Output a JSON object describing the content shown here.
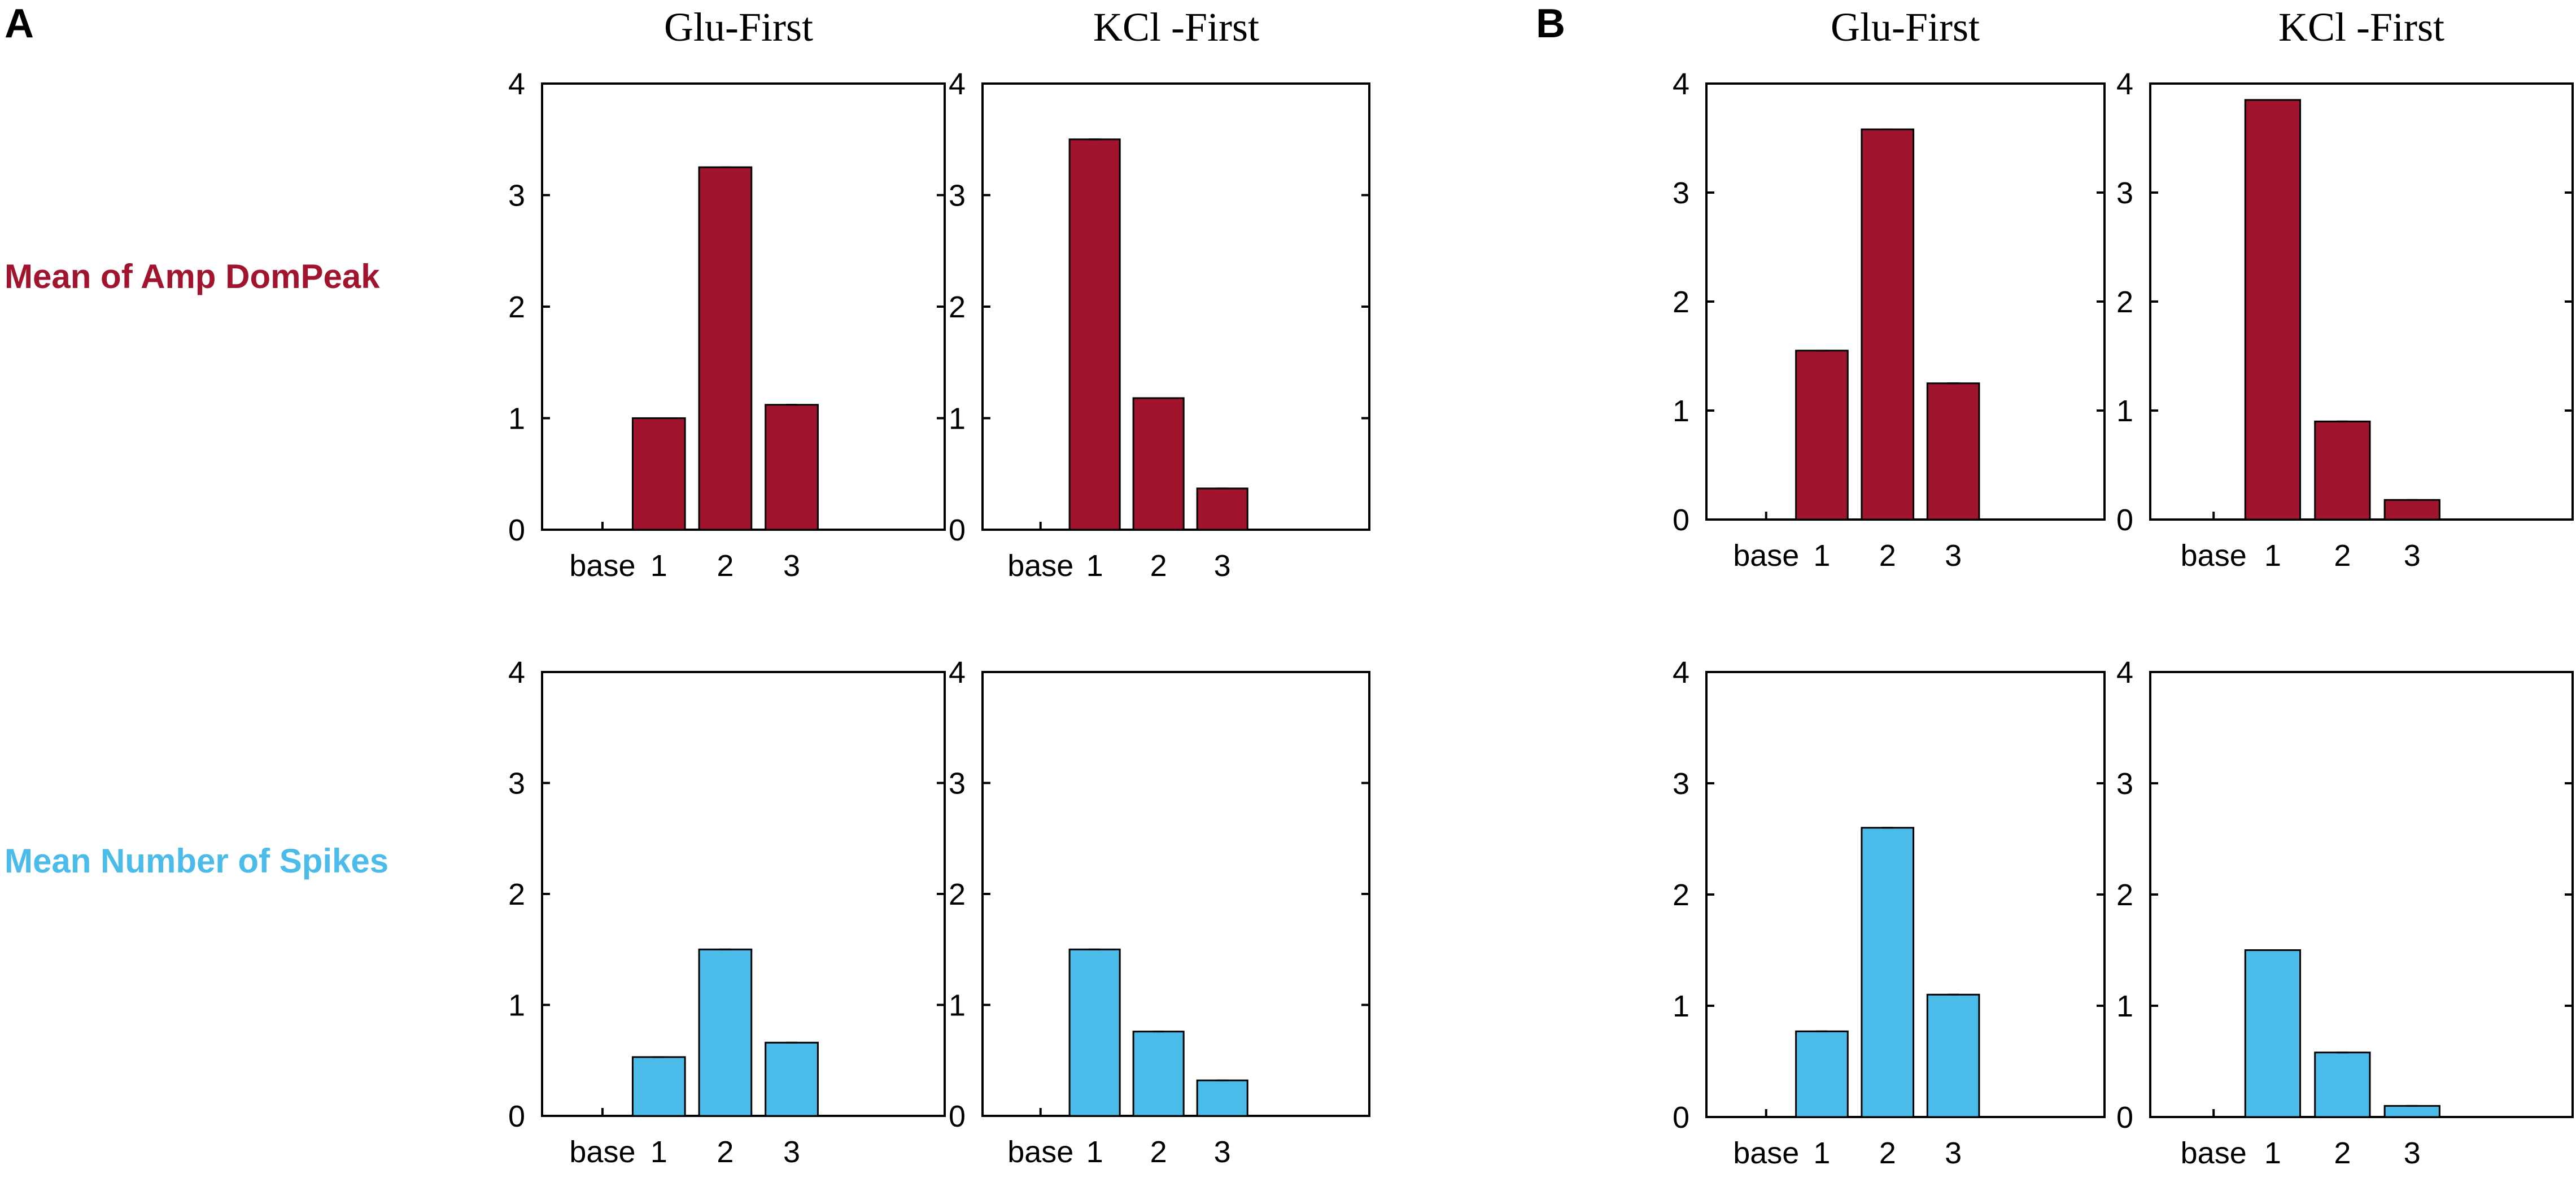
{
  "panels": [
    {
      "label": "A"
    },
    {
      "label": "B"
    }
  ],
  "column_titles": [
    "Glu-First",
    "KCl -First",
    "Glu-First",
    "KCl -First"
  ],
  "row_labels": [
    {
      "text": "Mean of Amp DomPeak",
      "color": "#a0142e"
    },
    {
      "text": "Mean Number of Spikes",
      "color": "#4bbbea"
    }
  ],
  "chart_data": [
    {
      "panel": "A",
      "title": "Glu-First",
      "metric": "Mean of Amp DomPeak",
      "type": "bar",
      "categories": [
        "base",
        "1",
        "2",
        "3"
      ],
      "values": [
        0,
        1.0,
        3.25,
        1.12
      ],
      "ylim": [
        0,
        4
      ],
      "yticks": [
        "0",
        "1",
        "2",
        "3",
        "4"
      ],
      "color": "#a0142e"
    },
    {
      "panel": "A",
      "title": "KCl -First",
      "metric": "Mean of Amp DomPeak",
      "type": "bar",
      "categories": [
        "base",
        "1",
        "2",
        "3"
      ],
      "values": [
        0,
        3.5,
        1.18,
        0.37
      ],
      "ylim": [
        0,
        4
      ],
      "yticks": [
        "0",
        "1",
        "2",
        "3",
        "4"
      ],
      "color": "#a0142e"
    },
    {
      "panel": "B",
      "title": "Glu-First",
      "metric": "Mean of Amp DomPeak",
      "type": "bar",
      "categories": [
        "base",
        "1",
        "2",
        "3"
      ],
      "values": [
        0,
        1.55,
        3.58,
        1.25
      ],
      "ylim": [
        0,
        4
      ],
      "yticks": [
        "0",
        "1",
        "2",
        "3",
        "4"
      ],
      "color": "#a0142e"
    },
    {
      "panel": "B",
      "title": "KCl -First",
      "metric": "Mean of Amp DomPeak",
      "type": "bar",
      "categories": [
        "base",
        "1",
        "2",
        "3"
      ],
      "values": [
        0,
        3.85,
        0.9,
        0.18
      ],
      "ylim": [
        0,
        4
      ],
      "yticks": [
        "0",
        "1",
        "2",
        "3",
        "4"
      ],
      "color": "#a0142e"
    },
    {
      "panel": "A",
      "title": "Glu-First",
      "metric": "Mean Number of Spikes",
      "type": "bar",
      "categories": [
        "base",
        "1",
        "2",
        "3"
      ],
      "values": [
        0,
        0.53,
        1.5,
        0.66
      ],
      "ylim": [
        0,
        4
      ],
      "yticks": [
        "0",
        "1",
        "2",
        "3",
        "4"
      ],
      "color": "#4bbbea"
    },
    {
      "panel": "A",
      "title": "KCl -First",
      "metric": "Mean Number of Spikes",
      "type": "bar",
      "categories": [
        "base",
        "1",
        "2",
        "3"
      ],
      "values": [
        0,
        1.5,
        0.76,
        0.32
      ],
      "ylim": [
        0,
        4
      ],
      "yticks": [
        "0",
        "1",
        "2",
        "3",
        "4"
      ],
      "color": "#4bbbea"
    },
    {
      "panel": "B",
      "title": "Glu-First",
      "metric": "Mean Number of Spikes",
      "type": "bar",
      "categories": [
        "base",
        "1",
        "2",
        "3"
      ],
      "values": [
        0,
        0.77,
        2.6,
        1.1
      ],
      "ylim": [
        0,
        4
      ],
      "yticks": [
        "0",
        "1",
        "2",
        "3",
        "4"
      ],
      "color": "#4bbbea"
    },
    {
      "panel": "B",
      "title": "KCl -First",
      "metric": "Mean Number of Spikes",
      "type": "bar",
      "categories": [
        "base",
        "1",
        "2",
        "3"
      ],
      "values": [
        0,
        1.5,
        0.58,
        0.1
      ],
      "ylim": [
        0,
        4
      ],
      "yticks": [
        "0",
        "1",
        "2",
        "3",
        "4"
      ],
      "color": "#4bbbea"
    }
  ]
}
